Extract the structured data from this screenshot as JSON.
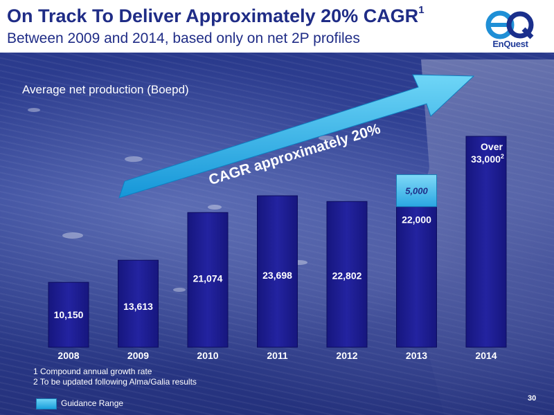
{
  "header": {
    "title": "On Track To Deliver Approximately 20% CAGR",
    "title_sup": "1",
    "subtitle": "Between 2009 and 2014, based only on net 2P profiles",
    "logo_text": "EnQuest"
  },
  "chart_data": {
    "type": "bar",
    "title": "Average net production (Boepd)",
    "categories": [
      "2008",
      "2009",
      "2010",
      "2011",
      "2012",
      "2013",
      "2014"
    ],
    "values": [
      10150,
      13613,
      21074,
      23698,
      22802,
      22000,
      33000
    ],
    "value_labels": [
      "10,150",
      "13,613",
      "21,074",
      "23,698",
      "22,802",
      "22,000",
      "Over 33,000"
    ],
    "value_label_sups": [
      "",
      "",
      "",
      "",
      "",
      "",
      "2"
    ],
    "guidance_range": {
      "category": "2013",
      "value": 5000,
      "label": "5,000"
    },
    "annotation": "CAGR approximately 20%",
    "legend": [
      {
        "label": "Guidance Range",
        "color": "#3fb8ea"
      }
    ],
    "colors": {
      "bar": "#1c1c8c",
      "guidance": "#3fb8ea",
      "arrow": "#2aa8e6"
    },
    "grid": false
  },
  "footnotes": [
    "1 Compound annual growth rate",
    "2 To be updated following Alma/Galia results"
  ],
  "page_number": "30"
}
